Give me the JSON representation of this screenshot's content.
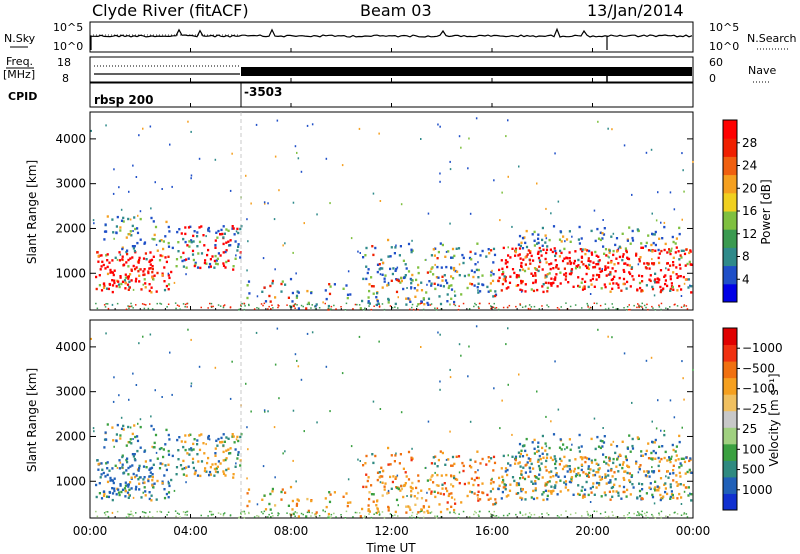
{
  "header": {
    "title": "Clyde River (fitACF)",
    "beam": "Beam 03",
    "date": "13/Jan/2014"
  },
  "chart_data": [
    {
      "type": "line",
      "panel": "noise",
      "left_label": "N.Sky",
      "left_ticks": [
        "10^5",
        "10^0"
      ],
      "right_label": "N.Search",
      "right_ticks": [
        "10^5",
        "10^0"
      ]
    },
    {
      "type": "line",
      "panel": "frequency",
      "left_label_top": "Freq.",
      "left_label_bottom": "[MHz]",
      "left_ticks": [
        "18",
        "8"
      ],
      "right_label": "Nave",
      "right_ticks": [
        "60",
        "0"
      ]
    },
    {
      "type": "table",
      "panel": "cpid",
      "label": "CPID",
      "segments": [
        {
          "text": "rbsp 200",
          "start_hour": 0
        },
        {
          "text": "-3503",
          "start_hour": 6
        }
      ]
    },
    {
      "type": "heatmap",
      "panel": "power",
      "ylabel": "Slant Range [km]",
      "y_ticks": [
        1000,
        2000,
        3000,
        4000
      ],
      "ylim": [
        180,
        4600
      ],
      "xlim": [
        0,
        24
      ],
      "colorbar_label": "Power [dB]",
      "colorbar_ticks": [
        "4",
        "8",
        "12",
        "16",
        "20",
        "24",
        "28"
      ],
      "colorbar_colors": [
        "#0000e6",
        "#1f4fc8",
        "#2f8a8a",
        "#3a9a50",
        "#7fc040",
        "#f0d020",
        "#f5a020",
        "#f06010",
        "#f02000",
        "#ff0000"
      ]
    },
    {
      "type": "heatmap",
      "panel": "velocity",
      "ylabel": "Slant Range [km]",
      "y_ticks": [
        1000,
        2000,
        3000,
        4000
      ],
      "ylim": [
        180,
        4600
      ],
      "xlim": [
        0,
        24
      ],
      "colorbar_label": "Velocity  [m s⁻¹]",
      "colorbar_ticks": [
        "1000",
        "500",
        "100",
        "25",
        "−25",
        "−100",
        "−500",
        "−1000"
      ],
      "colorbar_colors": [
        "#1030d0",
        "#2060b8",
        "#2f8a80",
        "#3aa040",
        "#a0d080",
        "#c8c8c8",
        "#f0c060",
        "#f5a020",
        "#f07010",
        "#f03010",
        "#e00000"
      ]
    }
  ],
  "x_axis": {
    "label": "Time UT",
    "tick_labels": [
      "00:00",
      "04:00",
      "08:00",
      "12:00",
      "16:00",
      "20:00",
      "00:00"
    ],
    "tick_hours": [
      0,
      4,
      8,
      12,
      16,
      20,
      24
    ]
  }
}
